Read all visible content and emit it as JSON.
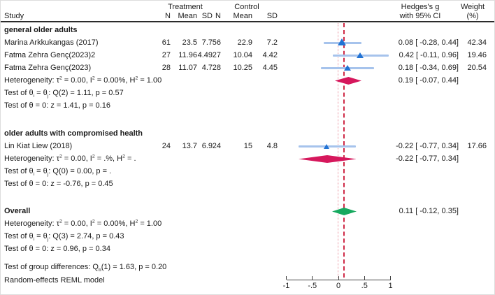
{
  "colors": {
    "marker_blue": "#2273d4",
    "ci_blue": "#a6c3ec",
    "subgroup_diamond": "#d6175c",
    "overall_diamond": "#17a95f",
    "overall_ref_line": "#cf2a47",
    "null_ref_line": "#eb96a2",
    "axis": "#404040",
    "rule": "#2b2b2b"
  },
  "chart_data": {
    "type": "forest",
    "effect_measure": "Hedges's g",
    "header": {
      "study": "Study",
      "treatment": "Treatment",
      "control": "Control",
      "n": "N",
      "mean": "Mean",
      "sd": "SD",
      "es_line1": "Hedges's g",
      "es_line2": "with 95% CI",
      "weight_line1": "Weight",
      "weight_line2": "(%)"
    },
    "xlim": [
      -1,
      1
    ],
    "x_ticks": [
      -1,
      -0.5,
      0,
      0.5,
      1
    ],
    "x_tick_labels": [
      "-1",
      "-.5",
      "0",
      ".5",
      "1"
    ],
    "null_value": 0,
    "groups": [
      {
        "name": "general older adults",
        "studies": [
          {
            "study": "Marina Arkkukangas (2017)",
            "treatment": {
              "n": "61",
              "mean": "23.5",
              "sd": "7.7"
            },
            "control": {
              "n": "56",
              "mean": "22.9",
              "sd": "7.2"
            },
            "es": 0.08,
            "ci": [
              -0.28,
              0.44
            ],
            "weight": 42.34
          },
          {
            "study": "Fatma Zehra Genç(2023)2",
            "treatment": {
              "n": "27",
              "mean": "11.96",
              "sd": "4.49"
            },
            "control": {
              "n": "27",
              "mean": "10.04",
              "sd": "4.42"
            },
            "es": 0.42,
            "ci": [
              -0.11,
              0.96
            ],
            "weight": 19.46
          },
          {
            "study": "Fatma Zehra Genç(2023)",
            "treatment": {
              "n": "28",
              "mean": "11.07",
              "sd": "4.7"
            },
            "control": {
              "n": "28",
              "mean": "10.25",
              "sd": "4.45"
            },
            "es": 0.18,
            "ci": [
              -0.34,
              0.69
            ],
            "weight": 20.54
          }
        ],
        "summary": {
          "es": 0.19,
          "ci": [
            -0.07,
            0.44
          ],
          "heterogeneity_label": "Heterogeneity: τ^{2} = 0.00, I^{2} = 0.00%, H^{2} = 1.00",
          "q_label": "Test of θ_{i} = θ_{j}: Q(2) = 1.11, p = 0.57",
          "z_label": "Test of θ = 0: z = 1.41, p = 0.16"
        }
      },
      {
        "name": "older adults with compromised health",
        "studies": [
          {
            "study": "Lin Kiat Liew (2018)",
            "treatment": {
              "n": "24",
              "mean": "13.7",
              "sd": "6.9"
            },
            "control": {
              "n": "24",
              "mean": "15",
              "sd": "4.8"
            },
            "es": -0.22,
            "ci": [
              -0.77,
              0.34
            ],
            "weight": 17.66
          }
        ],
        "summary": {
          "es": -0.22,
          "ci": [
            -0.77,
            0.34
          ],
          "heterogeneity_label": "Heterogeneity: τ^{2} = 0.00, I^{2} = .%, H^{2} = .",
          "q_label": "Test of θ_{i} = θ_{j}: Q(0) = 0.00, p = .",
          "z_label": "Test of θ = 0: z = -0.76, p = 0.45"
        }
      }
    ],
    "overall": {
      "label": "Overall",
      "es": 0.11,
      "ci": [
        -0.12,
        0.35
      ],
      "heterogeneity_label": "Heterogeneity: τ^{2} = 0.00, I^{2} = 0.00%, H^{2} = 1.00",
      "q_label": "Test of θ_{i} = θ_{j}: Q(3) = 2.74, p = 0.43",
      "z_label": "Test of θ = 0: z = 0.96, p = 0.34"
    },
    "notes": {
      "group_difference": "Test of group differences: Q_{b}(1) = 1.63, p = 0.20",
      "model": "Random-effects REML model"
    }
  }
}
